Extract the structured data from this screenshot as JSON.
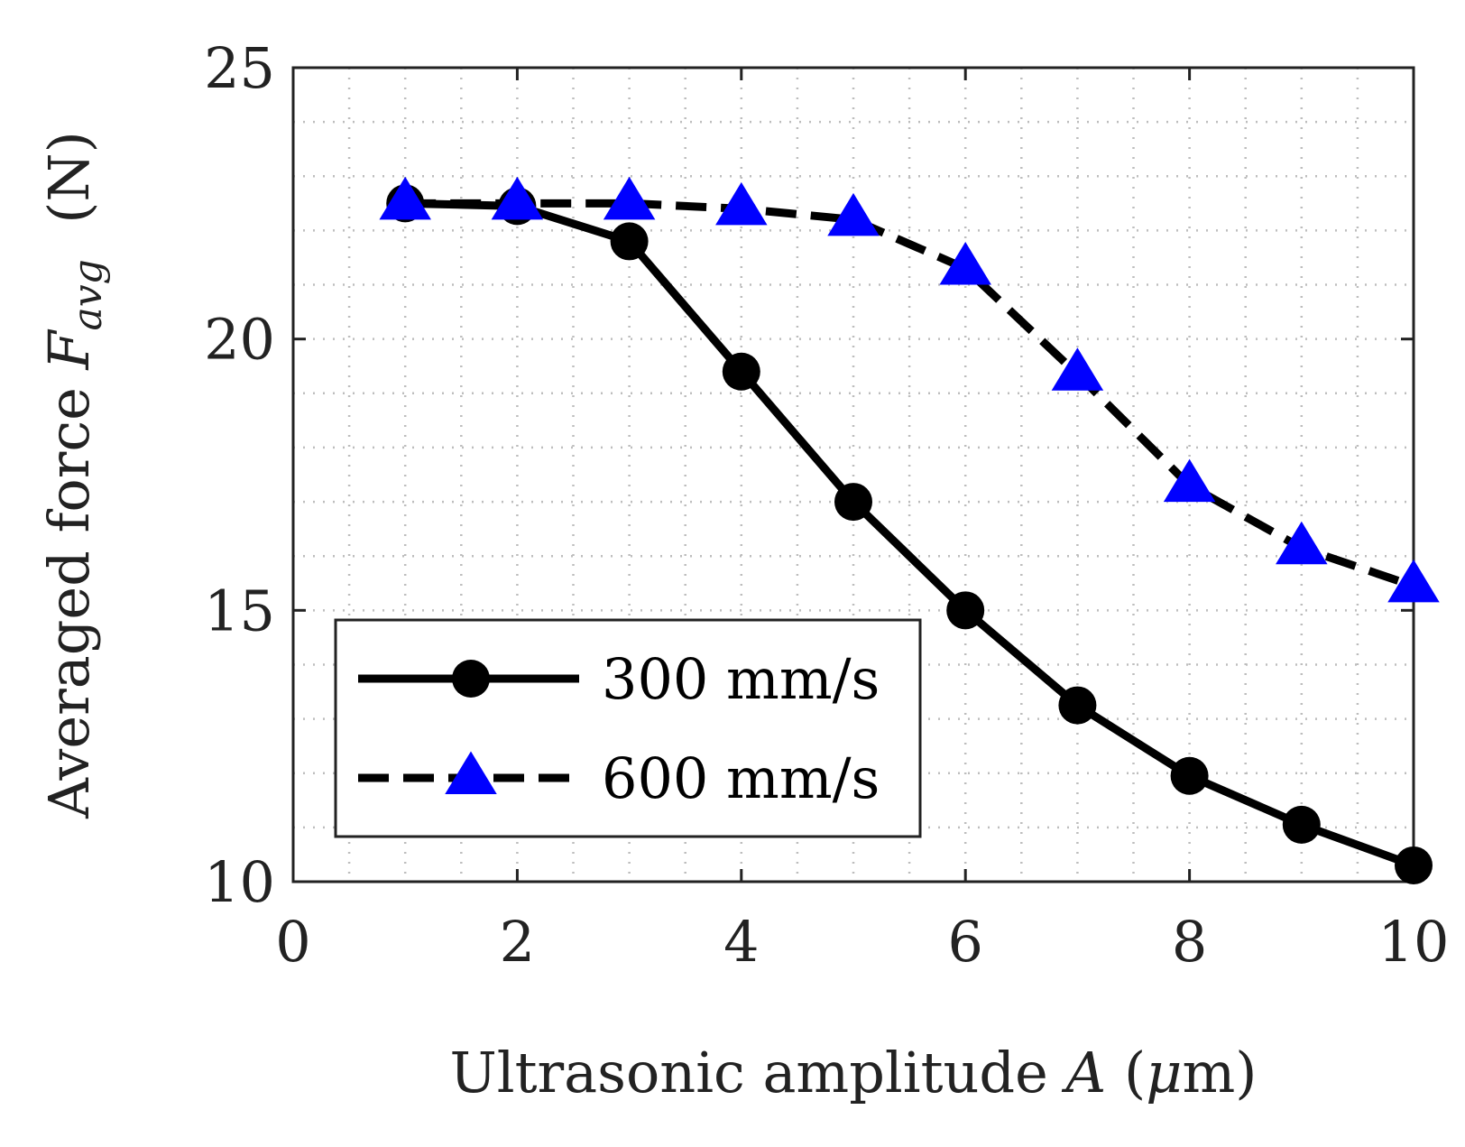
{
  "chart_data": {
    "type": "line",
    "xlabel": {
      "prefix": "Ultrasonic amplitude ",
      "symbol": "A",
      "unit_open": " (",
      "unit_symbol": "μ",
      "unit_rest": "m)"
    },
    "ylabel": {
      "prefix": "Averaged force ",
      "symbol": "F",
      "subscript": "avg",
      "unit": "  (N)"
    },
    "xlim": [
      0,
      10
    ],
    "ylim": [
      10,
      25
    ],
    "xticks": [
      0,
      2,
      4,
      6,
      8,
      10
    ],
    "xtick_labels": [
      "0",
      "2",
      "4",
      "6",
      "8",
      "10"
    ],
    "yticks": [
      10,
      15,
      20,
      25
    ],
    "ytick_labels": [
      "10",
      "15",
      "20",
      "25"
    ],
    "minor_x_step": 0.5,
    "minor_y_step": 1,
    "grid": true,
    "legend_position": "bottom-left",
    "series": [
      {
        "name": "300 mm/s",
        "line_style": "solid",
        "marker": "circle",
        "color": "#000000",
        "marker_color": "#000000",
        "x": [
          1,
          2,
          3,
          4,
          5,
          6,
          7,
          8,
          9,
          10
        ],
        "values": [
          22.5,
          22.45,
          21.8,
          19.4,
          17.0,
          15.0,
          13.25,
          11.95,
          11.05,
          10.3
        ]
      },
      {
        "name": "600 mm/s",
        "line_style": "dashed",
        "marker": "triangle",
        "color": "#000000",
        "marker_color": "#0000ff",
        "x": [
          1,
          2,
          3,
          4,
          5,
          6,
          7,
          8,
          9,
          10
        ],
        "values": [
          22.5,
          22.5,
          22.5,
          22.4,
          22.2,
          21.3,
          19.35,
          17.3,
          16.15,
          15.45
        ]
      }
    ]
  }
}
